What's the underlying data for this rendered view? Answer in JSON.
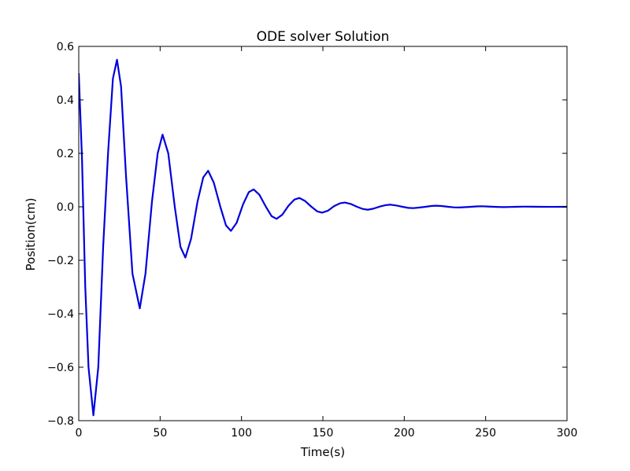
{
  "chart_data": {
    "type": "line",
    "title": "ODE solver Solution",
    "xlabel": "Time(s)",
    "ylabel": "Position(cm)",
    "xlim": [
      0,
      300
    ],
    "ylim": [
      -0.8,
      0.6
    ],
    "grid": false,
    "x_ticks": [
      0,
      50,
      100,
      150,
      200,
      250,
      300
    ],
    "x_tick_labels": [
      "0",
      "50",
      "100",
      "150",
      "200",
      "250",
      "300"
    ],
    "y_ticks": [
      -0.8,
      -0.6,
      -0.4,
      -0.2,
      0.0,
      0.2,
      0.4,
      0.6
    ],
    "y_tick_labels": [
      "−0.8",
      "−0.6",
      "−0.4",
      "−0.2",
      "0.0",
      "0.2",
      "0.4",
      "0.6"
    ],
    "series": [
      {
        "color": "#0000dd",
        "points": [
          [
            0,
            0.5
          ],
          [
            2,
            0.18
          ],
          [
            4,
            -0.3
          ],
          [
            6,
            -0.6
          ],
          [
            9,
            -0.78
          ],
          [
            12,
            -0.6
          ],
          [
            15,
            -0.15
          ],
          [
            18,
            0.2
          ],
          [
            21,
            0.48
          ],
          [
            23.5,
            0.55
          ],
          [
            26,
            0.45
          ],
          [
            29,
            0.12
          ],
          [
            33,
            -0.25
          ],
          [
            37.5,
            -0.38
          ],
          [
            41,
            -0.25
          ],
          [
            45,
            0.02
          ],
          [
            48.5,
            0.2
          ],
          [
            51.5,
            0.27
          ],
          [
            55,
            0.2
          ],
          [
            59,
            0.0
          ],
          [
            62.5,
            -0.15
          ],
          [
            65.5,
            -0.19
          ],
          [
            69,
            -0.12
          ],
          [
            73,
            0.02
          ],
          [
            76.5,
            0.11
          ],
          [
            79.5,
            0.135
          ],
          [
            83,
            0.09
          ],
          [
            87,
            0.0
          ],
          [
            90.5,
            -0.07
          ],
          [
            93.5,
            -0.09
          ],
          [
            97,
            -0.06
          ],
          [
            101,
            0.01
          ],
          [
            104.5,
            0.055
          ],
          [
            107.5,
            0.065
          ],
          [
            111,
            0.045
          ],
          [
            115,
            0.0
          ],
          [
            118.5,
            -0.035
          ],
          [
            121.5,
            -0.045
          ],
          [
            125,
            -0.03
          ],
          [
            129,
            0.005
          ],
          [
            132.5,
            0.027
          ],
          [
            135.5,
            0.033
          ],
          [
            139,
            0.022
          ],
          [
            143,
            0.0
          ],
          [
            146.5,
            -0.017
          ],
          [
            149.5,
            -0.022
          ],
          [
            153,
            -0.015
          ],
          [
            157,
            0.003
          ],
          [
            160.5,
            0.013
          ],
          [
            163.5,
            0.016
          ],
          [
            167,
            0.011
          ],
          [
            171,
            0.0
          ],
          [
            174.5,
            -0.008
          ],
          [
            177.5,
            -0.011
          ],
          [
            181,
            -0.007
          ],
          [
            185,
            0.001
          ],
          [
            188.5,
            0.006
          ],
          [
            191.5,
            0.008
          ],
          [
            195,
            0.005
          ],
          [
            199,
            0.0
          ],
          [
            202.5,
            -0.004
          ],
          [
            205.5,
            -0.005
          ],
          [
            209,
            -0.003
          ],
          [
            213,
            0.0
          ],
          [
            216.5,
            0.003
          ],
          [
            219.5,
            0.004
          ],
          [
            223,
            0.003
          ],
          [
            227,
            0.0
          ],
          [
            230.5,
            -0.002
          ],
          [
            233.5,
            -0.0025
          ],
          [
            237,
            -0.0015
          ],
          [
            241,
            0.0
          ],
          [
            244.5,
            0.0015
          ],
          [
            247.5,
            0.002
          ],
          [
            251,
            0.0012
          ],
          [
            255,
            0.0
          ],
          [
            258.5,
            -0.0008
          ],
          [
            261.5,
            -0.001
          ],
          [
            265,
            -0.0006
          ],
          [
            269,
            0.0
          ],
          [
            272.5,
            0.0005
          ],
          [
            275.5,
            0.0006
          ],
          [
            279,
            0.0004
          ],
          [
            283,
            0.0
          ],
          [
            290,
            -0.0002
          ],
          [
            300,
            0.0
          ]
        ]
      }
    ]
  }
}
